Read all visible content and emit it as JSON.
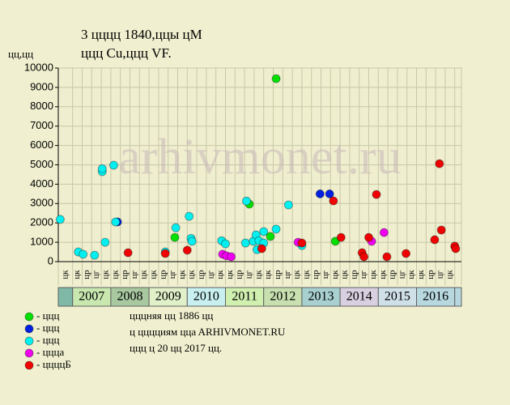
{
  "chart_data": {
    "type": "scatter",
    "title": "3 цццц 1840,ццы цМ",
    "subtitle": "ццц Cu,ццц VF.",
    "y_label": "цц,цц",
    "watermark": "arhivmonet.ru",
    "ylim": [
      0,
      10000
    ],
    "yticks": [
      0,
      1000,
      2000,
      3000,
      4000,
      5000,
      6000,
      7000,
      8000,
      9000,
      10000
    ],
    "xlim": [
      -1.5,
      40.7
    ],
    "grid": true,
    "columns": [
      "цк",
      "цк",
      "цр",
      "цг",
      "цк",
      "цк",
      "цр",
      "цг",
      "цк",
      "цк",
      "цр",
      "цг",
      "цк",
      "цк",
      "цр",
      "цг",
      "цк",
      "цк",
      "цр",
      "цг",
      "цк",
      "цк",
      "цр",
      "цг",
      "цк",
      "цк",
      "цр",
      "цг",
      "цк",
      "цк",
      "цр",
      "цг",
      "цк",
      "цк",
      "цр",
      "цг",
      "цк",
      "цк",
      "цр",
      "цг",
      "цк"
    ],
    "years": [
      "2007",
      "2008",
      "2009",
      "2010",
      "2011",
      "2012",
      "2013",
      "2014",
      "2015",
      "2016"
    ],
    "series": [
      {
        "name": "- ццц",
        "color": "#00e000",
        "x": [
          10.7,
          18.5,
          21.3,
          20.7,
          27.5
        ],
        "values": [
          1250,
          2970,
          9450,
          1300,
          1050
        ]
      },
      {
        "name": "- ццц",
        "color": "#0020e0",
        "x": [
          4.7,
          25.9,
          26.9
        ],
        "values": [
          2050,
          3500,
          3500
        ]
      },
      {
        "name": "- ццц",
        "color": "#00f0f0",
        "x": [
          -1.3,
          0.6,
          1.1,
          2.3,
          3.1,
          3.1,
          3.4,
          4.3,
          4.5,
          9.7,
          10.8,
          12.2,
          12.4,
          12.5,
          15.6,
          16.0,
          18.1,
          18.2,
          18.9,
          19.2,
          19.3,
          19.5,
          20.0,
          20.0,
          21.3,
          22.6,
          24.0
        ],
        "values": [
          2180,
          500,
          380,
          330,
          4650,
          4800,
          1000,
          4980,
          2050,
          500,
          1750,
          2340,
          1200,
          1050,
          1080,
          920,
          960,
          3130,
          1050,
          1380,
          620,
          1080,
          960,
          1550,
          1680,
          2930,
          830
        ]
      },
      {
        "name": "- цццa",
        "color": "#f000f0",
        "x": [
          15.7,
          16.1,
          16.6,
          23.6,
          31.3,
          32.6
        ],
        "values": [
          380,
          300,
          250,
          1000,
          1050,
          1500
        ]
      },
      {
        "name": "- ццццБ",
        "color": "#f00000",
        "x": [
          5.8,
          9.7,
          12.0,
          19.8,
          24.0,
          27.3,
          28.1,
          30.3,
          30.5,
          31.0,
          31.8,
          32.9,
          34.9,
          37.9,
          38.4,
          38.6,
          40.0,
          40.1
        ],
        "values": [
          460,
          420,
          590,
          670,
          960,
          3140,
          1250,
          460,
          250,
          1250,
          3470,
          250,
          420,
          1130,
          5060,
          1630,
          800,
          670
        ]
      }
    ],
    "notes": [
      "цццняя цц 1886 цц",
      "ц цццциям ццa ARHIVMONET.RU",
      "ццц ц 20 цц 2017 цц."
    ]
  }
}
